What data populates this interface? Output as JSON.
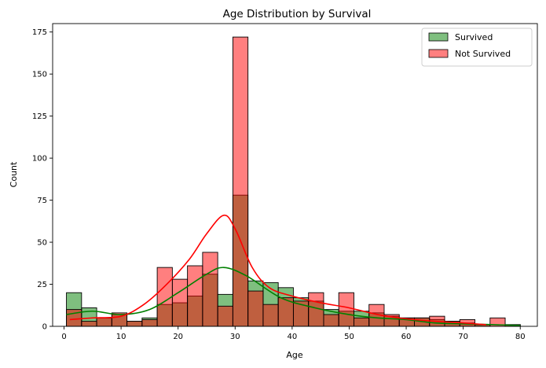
{
  "chart_data": {
    "type": "bar",
    "title": "Age Distribution by Survival",
    "xlabel": "Age",
    "ylabel": "Count",
    "xlim": [
      -2,
      83
    ],
    "ylim": [
      0,
      180
    ],
    "xticks": [
      0,
      10,
      20,
      30,
      40,
      50,
      60,
      70,
      80
    ],
    "yticks": [
      0,
      25,
      50,
      75,
      100,
      125,
      150,
      175
    ],
    "grid": false,
    "legend_position": "top-right",
    "histogram": {
      "bin_start": 0.42,
      "bin_width": 2.653,
      "bins": 30
    },
    "series": [
      {
        "name": "Survived",
        "color": "#008000",
        "line_color": "#008000",
        "counts": [
          20,
          11,
          5,
          7,
          3,
          5,
          13,
          14,
          18,
          31,
          19,
          78,
          27,
          26,
          23,
          17,
          15,
          10,
          9,
          9,
          8,
          6,
          5,
          5,
          4,
          3,
          2,
          1,
          0,
          1
        ],
        "kde": [
          [
            0.4,
            7
          ],
          [
            5,
            9
          ],
          [
            10,
            7
          ],
          [
            15,
            10
          ],
          [
            20,
            20
          ],
          [
            25,
            31
          ],
          [
            28,
            35
          ],
          [
            32,
            30
          ],
          [
            38,
            17
          ],
          [
            44,
            11
          ],
          [
            50,
            7
          ],
          [
            55,
            5
          ],
          [
            60,
            4
          ],
          [
            65,
            2
          ],
          [
            70,
            1.5
          ],
          [
            75,
            1
          ],
          [
            80,
            0.5
          ]
        ]
      },
      {
        "name": "Not Survived",
        "color": "#ff0000",
        "line_color": "#ff0000",
        "counts": [
          10,
          3,
          5,
          8,
          3,
          4,
          35,
          28,
          36,
          44,
          12,
          172,
          21,
          13,
          17,
          15,
          20,
          7,
          20,
          5,
          13,
          7,
          5,
          5,
          6,
          3,
          4,
          1,
          5,
          1
        ],
        "kde": [
          [
            1,
            4
          ],
          [
            5,
            5
          ],
          [
            10,
            6
          ],
          [
            14,
            13
          ],
          [
            18,
            25
          ],
          [
            22,
            40
          ],
          [
            25,
            55
          ],
          [
            28,
            66
          ],
          [
            30,
            58
          ],
          [
            33,
            35
          ],
          [
            36,
            23
          ],
          [
            40,
            18
          ],
          [
            45,
            14
          ],
          [
            50,
            11
          ],
          [
            55,
            7
          ],
          [
            60,
            4.5
          ],
          [
            65,
            3
          ],
          [
            70,
            2
          ],
          [
            74,
            1
          ]
        ]
      }
    ]
  }
}
